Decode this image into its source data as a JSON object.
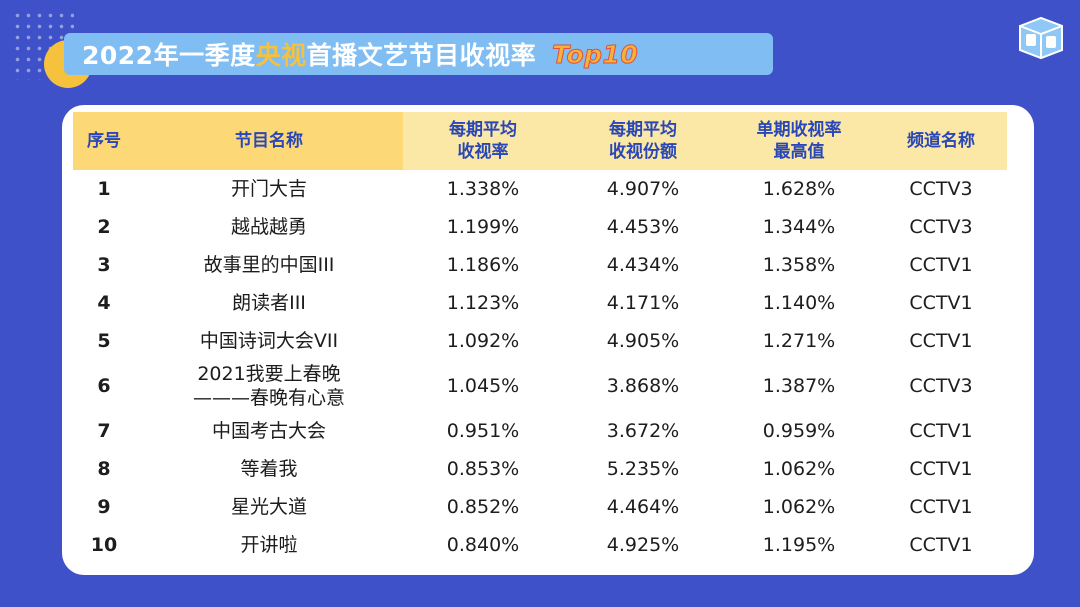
{
  "title": {
    "part1": "2022年一季度",
    "highlight": "央视",
    "part2": "首播文艺节目收视率",
    "badge": "Top10"
  },
  "colors": {
    "background": "#3e51c8",
    "title_bar": "#7fbdf2",
    "accent_yellow": "#f6c13d",
    "header_fill": "#fbe7a6",
    "header_text": "#2a47b8"
  },
  "chart_data": {
    "type": "table",
    "columns": [
      "序号",
      "节目名称",
      "每期平均\n收视率",
      "每期平均\n收视份额",
      "单期收视率\n最高值",
      "频道名称"
    ],
    "rows": [
      [
        "1",
        "开门大吉",
        "1.338%",
        "4.907%",
        "1.628%",
        "CCTV3"
      ],
      [
        "2",
        "越战越勇",
        "1.199%",
        "4.453%",
        "1.344%",
        "CCTV3"
      ],
      [
        "3",
        "故事里的中国III",
        "1.186%",
        "4.434%",
        "1.358%",
        "CCTV1"
      ],
      [
        "4",
        "朗读者III",
        "1.123%",
        "4.171%",
        "1.140%",
        "CCTV1"
      ],
      [
        "5",
        "中国诗词大会VII",
        "1.092%",
        "4.905%",
        "1.271%",
        "CCTV1"
      ],
      [
        "6",
        "2021我要上春晚\n———春晚有心意",
        "1.045%",
        "3.868%",
        "1.387%",
        "CCTV3"
      ],
      [
        "7",
        "中国考古大会",
        "0.951%",
        "3.672%",
        "0.959%",
        "CCTV1"
      ],
      [
        "8",
        "等着我",
        "0.853%",
        "5.235%",
        "1.062%",
        "CCTV1"
      ],
      [
        "9",
        "星光大道",
        "0.852%",
        "4.464%",
        "1.062%",
        "CCTV1"
      ],
      [
        "10",
        "开讲啦",
        "0.840%",
        "4.925%",
        "1.195%",
        "CCTV1"
      ]
    ]
  }
}
